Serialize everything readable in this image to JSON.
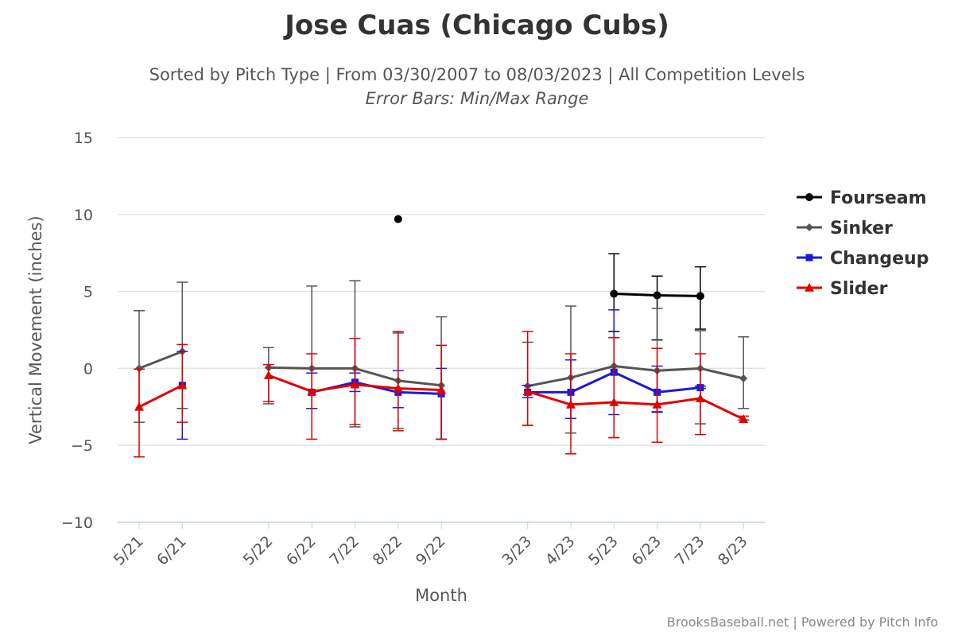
{
  "title": "Jose Cuas (Chicago Cubs)",
  "subtitle": "Sorted by Pitch Type | From 03/30/2007 to 08/03/2023 | All Competition Levels",
  "subtitle2": "Error Bars: Min/Max Range",
  "credits": "BrooksBaseball.net | Powered by Pitch Info",
  "chart_data": {
    "type": "line",
    "xlabel": "Month",
    "ylabel": "Vertical Movement (inches)",
    "ylim": [
      -10,
      15
    ],
    "yticks": [
      15,
      10,
      5,
      0,
      -5,
      -10
    ],
    "ytick_labels": [
      "15",
      "10",
      "5",
      "0",
      "−5",
      "−10"
    ],
    "grid": true,
    "legend_position": "right",
    "categories": [
      "5/21",
      "6/21",
      "",
      "5/22",
      "6/22",
      "7/22",
      "8/22",
      "9/22",
      "",
      "3/23",
      "4/23",
      "5/23",
      "6/23",
      "7/23",
      "8/23"
    ],
    "series": [
      {
        "name": "Fourseam",
        "color": "#000000",
        "marker": "circle",
        "values": [
          null,
          null,
          null,
          null,
          null,
          null,
          9.7,
          null,
          null,
          null,
          null,
          4.85,
          4.75,
          4.7,
          null
        ],
        "min": [
          null,
          null,
          null,
          null,
          null,
          null,
          9.7,
          null,
          null,
          null,
          null,
          2.4,
          1.85,
          2.55,
          null
        ],
        "max": [
          null,
          null,
          null,
          null,
          null,
          null,
          9.7,
          null,
          null,
          null,
          null,
          7.45,
          6.0,
          6.6,
          null
        ]
      },
      {
        "name": "Sinker",
        "color": "#555555",
        "marker": "diamond",
        "values": [
          0.0,
          1.1,
          null,
          0.05,
          0.0,
          0.0,
          -0.8,
          -1.1,
          null,
          -1.15,
          -0.6,
          0.15,
          -0.15,
          0.0,
          -0.65
        ],
        "min": [
          -3.5,
          -2.6,
          null,
          -2.3,
          -2.6,
          -3.8,
          -3.9,
          -4.6,
          null,
          -3.7,
          -4.2,
          -4.5,
          -2.8,
          -3.6,
          -2.6
        ],
        "max": [
          3.75,
          5.6,
          null,
          1.35,
          5.35,
          5.7,
          2.3,
          3.35,
          null,
          1.7,
          4.05,
          2.0,
          3.9,
          2.45,
          2.05
        ]
      },
      {
        "name": "Changeup",
        "color": "#1a1adb",
        "marker": "square",
        "values": [
          null,
          -1.1,
          null,
          null,
          -1.55,
          -0.9,
          -1.55,
          -1.65,
          null,
          -1.55,
          -1.55,
          -0.25,
          -1.55,
          -1.25,
          null
        ],
        "min": [
          null,
          -4.6,
          null,
          null,
          -2.6,
          -1.5,
          -2.55,
          -4.6,
          null,
          -1.9,
          -3.25,
          -3.0,
          -2.85,
          -1.3,
          null
        ],
        "max": [
          null,
          1.1,
          null,
          null,
          -0.3,
          -0.3,
          -0.15,
          0.0,
          null,
          -1.1,
          0.55,
          3.8,
          0.15,
          -1.15,
          null
        ]
      },
      {
        "name": "Slider",
        "color": "#e00000",
        "marker": "triangle",
        "values": [
          -2.5,
          -1.1,
          null,
          -0.45,
          -1.5,
          -1.05,
          -1.3,
          -1.4,
          null,
          -1.5,
          -2.35,
          -2.2,
          -2.35,
          -1.95,
          -3.3
        ],
        "min": [
          -5.75,
          -3.5,
          null,
          -2.15,
          -4.6,
          -3.65,
          -4.05,
          -4.6,
          null,
          -3.7,
          -5.55,
          -4.5,
          -4.8,
          -4.3,
          -3.35
        ],
        "max": [
          -0.05,
          1.55,
          null,
          0.25,
          0.95,
          1.95,
          2.4,
          1.5,
          null,
          2.4,
          0.95,
          2.0,
          1.3,
          0.95,
          -3.1
        ]
      }
    ]
  }
}
